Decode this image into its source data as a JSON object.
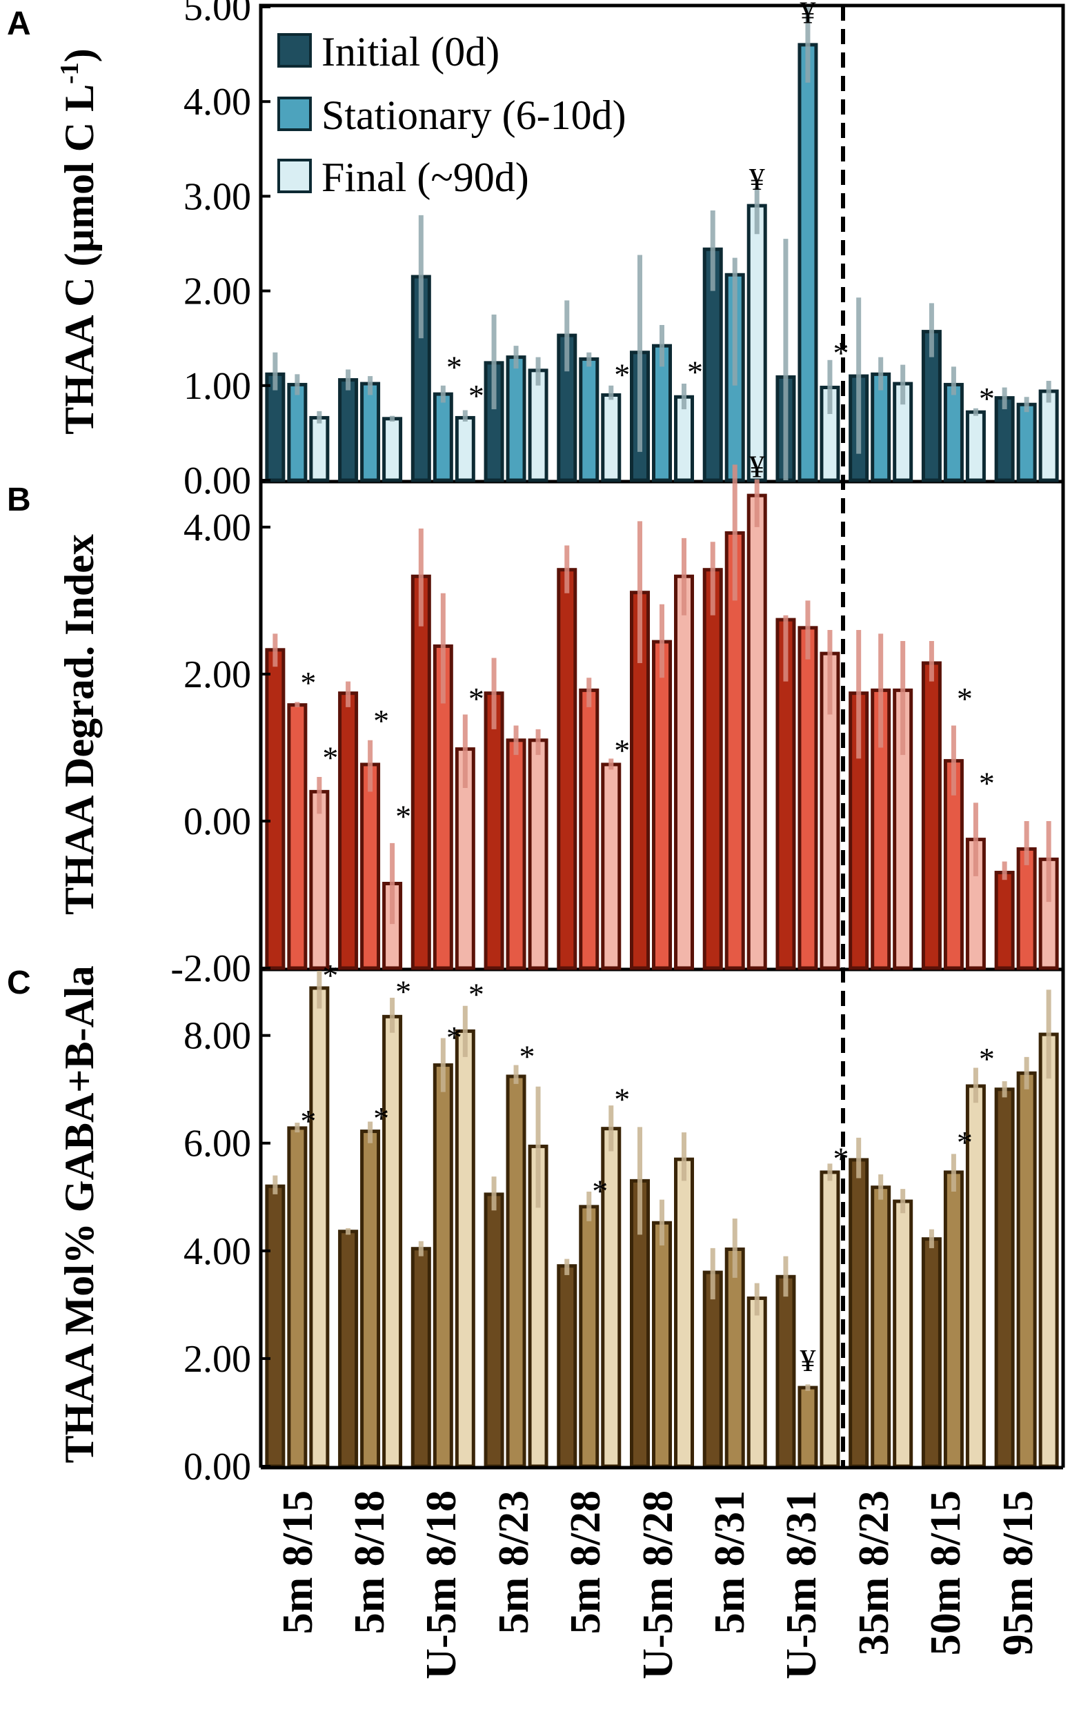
{
  "chart_data": [
    {
      "panel": "A",
      "type": "bar",
      "ylabel": "THAA C (µmol C L-1)",
      "ylim": [
        0,
        5
      ],
      "yticks": [
        "0.00",
        "1.00",
        "2.00",
        "3.00",
        "4.00",
        "5.00"
      ],
      "tick_values": [
        0,
        1,
        2,
        3,
        4,
        5
      ],
      "categories": [
        "5m 8/15",
        "5m 8/18",
        "U-5m 8/18",
        "5m 8/23",
        "5m 8/28",
        "U-5m 8/28",
        "5m 8/31",
        "U-5m 8/31",
        "35m 8/23",
        "50m 8/15",
        "95m 8/15"
      ],
      "legend": [
        "Initial (0d)",
        "Stationary (6-10d)",
        "Final (~90d)"
      ],
      "colors": [
        "#1f4e5f",
        "#4da3bd",
        "#d9eef3"
      ],
      "series": [
        {
          "name": "Initial (0d)",
          "values": [
            1.12,
            1.06,
            2.15,
            1.24,
            1.53,
            1.35,
            2.44,
            1.09,
            1.1,
            1.57,
            0.87
          ],
          "err": [
            [
              0.95,
              1.35
            ],
            [
              0.95,
              1.17
            ],
            [
              1.5,
              2.8
            ],
            [
              0.75,
              1.75
            ],
            [
              1.15,
              1.9
            ],
            [
              0.3,
              2.38
            ],
            [
              2.0,
              2.85
            ],
            [
              0.0,
              2.55
            ],
            [
              0.28,
              1.93
            ],
            [
              1.3,
              1.87
            ],
            [
              0.75,
              0.98
            ]
          ]
        },
        {
          "name": "Stationary (6-10d)",
          "values": [
            1.01,
            1.02,
            0.91,
            1.3,
            1.28,
            1.42,
            2.17,
            4.6,
            1.12,
            1.01,
            0.8
          ],
          "err": [
            [
              0.9,
              1.12
            ],
            [
              0.9,
              1.1
            ],
            [
              0.82,
              1.0
            ],
            [
              1.18,
              1.42
            ],
            [
              1.2,
              1.35
            ],
            [
              1.2,
              1.64
            ],
            [
              1.0,
              2.35
            ],
            [
              4.2,
              5.0
            ],
            [
              0.95,
              1.3
            ],
            [
              0.9,
              1.2
            ],
            [
              0.72,
              0.88
            ]
          ]
        },
        {
          "name": "Final (~90d)",
          "values": [
            0.66,
            0.65,
            0.66,
            1.16,
            0.9,
            0.88,
            2.9,
            0.98,
            1.02,
            0.72,
            0.94
          ],
          "err": [
            [
              0.6,
              0.73
            ],
            [
              0.62,
              0.68
            ],
            [
              0.62,
              0.74
            ],
            [
              1.0,
              1.3
            ],
            [
              0.85,
              1.0
            ],
            [
              0.75,
              1.02
            ],
            [
              2.6,
              3.1
            ],
            [
              0.7,
              1.27
            ],
            [
              0.8,
              1.22
            ],
            [
              0.68,
              0.76
            ],
            [
              0.82,
              1.05
            ]
          ]
        }
      ],
      "annotations": [
        {
          "text": "*",
          "cat": 2,
          "series": 1,
          "y": 1.3
        },
        {
          "text": "*",
          "cat": 2,
          "series": 2,
          "y": 1.0
        },
        {
          "text": "*",
          "cat": 4,
          "series": 2,
          "y": 1.22
        },
        {
          "text": "*",
          "cat": 5,
          "series": 2,
          "y": 1.25
        },
        {
          "text": "¥",
          "cat": 6,
          "series": 2,
          "y": 3.2
        },
        {
          "text": "¥",
          "cat": 7,
          "series": 1,
          "y": 4.96
        },
        {
          "text": "*",
          "cat": 7,
          "series": 2,
          "y": 1.45
        },
        {
          "text": "*",
          "cat": 9,
          "series": 2,
          "y": 0.97
        }
      ]
    },
    {
      "panel": "B",
      "type": "bar",
      "ylabel": "THAA Degrad. Index",
      "ylim": [
        -2,
        4.6
      ],
      "yticks": [
        "-2.00",
        "0.00",
        "2.00",
        "4.00"
      ],
      "tick_values": [
        -2,
        0,
        2,
        4
      ],
      "categories": [
        "5m 8/15",
        "5m 8/18",
        "U-5m 8/18",
        "5m 8/23",
        "5m 8/28",
        "U-5m 8/28",
        "5m 8/31",
        "U-5m 8/31",
        "35m 8/23",
        "50m 8/15",
        "95m 8/15"
      ],
      "colors": [
        "#b22a14",
        "#e55a45",
        "#f2b6aa"
      ],
      "series": [
        {
          "name": "Initial (0d)",
          "values": [
            2.33,
            1.74,
            3.33,
            1.74,
            3.42,
            3.11,
            3.42,
            2.74,
            1.74,
            2.15,
            -0.7
          ],
          "err": [
            [
              2.1,
              2.55
            ],
            [
              1.55,
              1.9
            ],
            [
              2.65,
              3.98
            ],
            [
              1.25,
              2.22
            ],
            [
              3.1,
              3.75
            ],
            [
              2.15,
              4.08
            ],
            [
              2.8,
              3.8
            ],
            [
              1.9,
              2.8
            ],
            [
              0.85,
              2.6
            ],
            [
              1.9,
              2.45
            ],
            [
              -0.8,
              -0.55
            ]
          ]
        },
        {
          "name": "Stationary (6-10d)",
          "values": [
            1.58,
            0.77,
            2.38,
            1.1,
            1.78,
            2.44,
            3.92,
            2.63,
            1.78,
            0.82,
            -0.38
          ],
          "err": [
            [
              1.55,
              1.62
            ],
            [
              0.4,
              1.1
            ],
            [
              1.6,
              3.1
            ],
            [
              0.9,
              1.3
            ],
            [
              1.55,
              1.95
            ],
            [
              1.95,
              2.95
            ],
            [
              3.0,
              4.85
            ],
            [
              2.2,
              3.0
            ],
            [
              1.0,
              2.55
            ],
            [
              0.35,
              1.3
            ],
            [
              -0.6,
              0.0
            ]
          ]
        },
        {
          "name": "Final (~90d)",
          "values": [
            0.4,
            -0.85,
            0.98,
            1.1,
            0.77,
            3.33,
            4.43,
            2.28,
            1.78,
            -0.25,
            -0.52
          ],
          "err": [
            [
              0.1,
              0.6
            ],
            [
              -1.4,
              -0.3
            ],
            [
              0.45,
              1.45
            ],
            [
              0.9,
              1.25
            ],
            [
              0.7,
              0.85
            ],
            [
              2.8,
              3.85
            ],
            [
              4.0,
              4.65
            ],
            [
              1.45,
              2.6
            ],
            [
              0.9,
              2.45
            ],
            [
              -0.75,
              0.25
            ],
            [
              -1.1,
              0.0
            ]
          ]
        }
      ],
      "annotations": [
        {
          "text": "*",
          "cat": 0,
          "series": 1,
          "y": 2.02
        },
        {
          "text": "*",
          "cat": 0,
          "series": 2,
          "y": 1.0
        },
        {
          "text": "*",
          "cat": 1,
          "series": 1,
          "y": 1.5
        },
        {
          "text": "*",
          "cat": 1,
          "series": 2,
          "y": 0.2
        },
        {
          "text": "*",
          "cat": 2,
          "series": 2,
          "y": 1.8
        },
        {
          "text": "*",
          "cat": 4,
          "series": 2,
          "y": 1.1
        },
        {
          "text": "¥",
          "cat": 6,
          "series": 2,
          "y": 4.85
        },
        {
          "text": "*",
          "cat": 9,
          "series": 1,
          "y": 1.8
        },
        {
          "text": "*",
          "cat": 9,
          "series": 2,
          "y": 0.65
        }
      ]
    },
    {
      "panel": "C",
      "type": "bar",
      "ylabel": "THAA Mol% GABA+B-Ala",
      "ylim": [
        0,
        9.2
      ],
      "yticks": [
        "0.00",
        "2.00",
        "4.00",
        "6.00",
        "8.00"
      ],
      "tick_values": [
        0,
        2,
        4,
        6,
        8
      ],
      "categories": [
        "5m 8/15",
        "5m 8/18",
        "U-5m 8/18",
        "5m 8/23",
        "5m 8/28",
        "U-5m 8/28",
        "5m 8/31",
        "U-5m 8/31",
        "35m 8/23",
        "50m 8/15",
        "95m 8/15"
      ],
      "colors": [
        "#6b4a1f",
        "#a8874f",
        "#e8d8b5"
      ],
      "series": [
        {
          "name": "Initial (0d)",
          "values": [
            5.2,
            4.36,
            4.04,
            5.05,
            3.72,
            5.3,
            3.6,
            3.52,
            5.69,
            4.22,
            7.0
          ],
          "err": [
            [
              5.05,
              5.4
            ],
            [
              4.3,
              4.42
            ],
            [
              3.9,
              4.18
            ],
            [
              4.75,
              5.38
            ],
            [
              3.55,
              3.85
            ],
            [
              4.3,
              6.3
            ],
            [
              3.1,
              4.05
            ],
            [
              3.15,
              3.9
            ],
            [
              5.35,
              6.1
            ],
            [
              4.05,
              4.4
            ],
            [
              6.85,
              7.15
            ]
          ]
        },
        {
          "name": "Stationary (6-10d)",
          "values": [
            6.28,
            6.22,
            7.45,
            7.24,
            4.82,
            4.52,
            4.03,
            1.46,
            5.18,
            5.46,
            7.3
          ],
          "err": [
            [
              6.2,
              6.38
            ],
            [
              6.0,
              6.4
            ],
            [
              6.95,
              7.95
            ],
            [
              7.1,
              7.45
            ],
            [
              4.55,
              5.1
            ],
            [
              4.1,
              4.95
            ],
            [
              3.5,
              4.6
            ],
            [
              1.4,
              1.52
            ],
            [
              4.95,
              5.42
            ],
            [
              5.1,
              5.8
            ],
            [
              7.0,
              7.6
            ]
          ]
        },
        {
          "name": "Final (~90d)",
          "values": [
            8.88,
            8.35,
            8.08,
            5.94,
            6.27,
            5.7,
            3.12,
            5.46,
            4.92,
            7.06,
            8.02
          ],
          "err": [
            [
              8.5,
              9.2
            ],
            [
              8.05,
              8.7
            ],
            [
              7.6,
              8.55
            ],
            [
              4.8,
              7.05
            ],
            [
              5.85,
              6.7
            ],
            [
              5.3,
              6.2
            ],
            [
              2.8,
              3.4
            ],
            [
              5.3,
              5.62
            ],
            [
              4.7,
              5.15
            ],
            [
              6.75,
              7.4
            ],
            [
              7.2,
              8.85
            ]
          ]
        }
      ],
      "annotations": [
        {
          "text": "*",
          "cat": 0,
          "series": 1,
          "y": 6.6
        },
        {
          "text": "*",
          "cat": 0,
          "series": 2,
          "y": 9.3
        },
        {
          "text": "*",
          "cat": 1,
          "series": 1,
          "y": 6.65
        },
        {
          "text": "*",
          "cat": 1,
          "series": 2,
          "y": 9.0
        },
        {
          "text": "*",
          "cat": 2,
          "series": 1,
          "y": 8.15
        },
        {
          "text": "*",
          "cat": 2,
          "series": 2,
          "y": 8.95
        },
        {
          "text": "*",
          "cat": 3,
          "series": 1,
          "y": 7.8
        },
        {
          "text": "*",
          "cat": 4,
          "series": 1,
          "y": 5.3
        },
        {
          "text": "*",
          "cat": 4,
          "series": 2,
          "y": 7.0
        },
        {
          "text": "¥",
          "cat": 7,
          "series": 1,
          "y": 2.0
        },
        {
          "text": "*",
          "cat": 7,
          "series": 2,
          "y": 5.9
        },
        {
          "text": "*",
          "cat": 9,
          "series": 1,
          "y": 6.2
        },
        {
          "text": "*",
          "cat": 9,
          "series": 2,
          "y": 7.75
        }
      ]
    }
  ],
  "panel_letters": [
    "A",
    "B",
    "C"
  ],
  "ylabels": {
    "a_main": "THAA C (µmol C L",
    "a_sup": "-1",
    "a_end": ")",
    "b": "THAA Degrad. Index",
    "c": "THAA Mol% GABA+B-Ala"
  },
  "legend": {
    "initial": "Initial (0d)",
    "stationary": "Stationary (6-10d)",
    "final": "Final (~90d)"
  },
  "x_categories": [
    "5m 8/15",
    "5m 8/18",
    "U-5m 8/18",
    "5m 8/23",
    "5m 8/28",
    "U-5m 8/28",
    "5m 8/31",
    "U-5m 8/31",
    "35m 8/23",
    "50m 8/15",
    "95m 8/15"
  ],
  "divider_after_category": "U-5m 8/31"
}
